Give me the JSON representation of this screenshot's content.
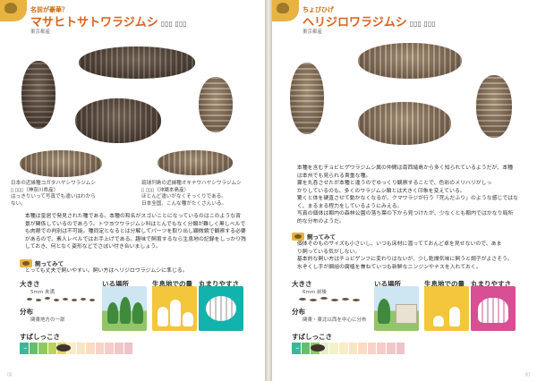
{
  "left": {
    "caption_label": "名前が豪華？",
    "title_jp": "マサヒトサトワラジムシ",
    "title_latin": "▯▯▯ ▯▯▯",
    "origin": "東京都産",
    "caption_a_line1": "日本の近縁種コガタハヤシワラジムシ",
    "caption_a_latin": "▯ ▯▯▯",
    "caption_a_place": "（神奈川県産）",
    "caption_a_line2": "はっきりいって写真でも違いはわから",
    "caption_a_line3": "ない。",
    "caption_b_line1": "琉球列島の近縁種オキナワハヤシワラジムシ",
    "caption_b_latin": "▯ ▯▯▯",
    "caption_b_place": "（沖縄本島産）",
    "caption_b_line2": "ほとんど違いがなくそっくりである。",
    "caption_b_line3": "日本全国、こんな種がたくさんいる。",
    "body_line1": "本種は皇居で発見された種である。本種の和名がスゴいことになっているのはこのような背",
    "body_line2": "景が関係しているのであろう。トウヨウワラジムシ科はとんでもなく分類が難しく黒しべルで",
    "body_line3": "も肉眼での判別は不可能。種同定となるとは分解してパーツを取り出し顕微鏡で観察する必要",
    "body_line4": "があるので、素人レベルではお手上げである。趣味で飼育するなら生息地の記録をしっかり残",
    "body_line5": "しておき、何となく姿形などでさぼい付き合いましょう。",
    "keep_heading": "飼ってみて",
    "keep_text": "とっても丈夫で飼いやすい。飼い方はヘリジロワラジムシに準じる。",
    "size_label": "大きさ",
    "size_value": "5mm 未満",
    "distribution_label": "分布",
    "distribution_value": "関東地方の一部",
    "habitat_label": "いる場所",
    "amount_label": "生息地での量",
    "round_label": "丸まりやすさ",
    "speed_label": "すばしっこさ",
    "speed_min": "−",
    "speed_max": "+",
    "page_number": "▯▯"
  },
  "right": {
    "caption_label": "ちょびひげ",
    "title_jp": "ヘリジロワラジムシ",
    "title_latin": "▯▯▯ ▯▯▯",
    "origin": "東京都産",
    "body_line1": "本種を含むチョビヒゲワラジムシ属の仲間は南西諸島から多く知られているようだが、本種",
    "body_line2": "は本州でも見られる貴重な種。",
    "body_line3": "翼を丸呑させたが本種と違うのでゆっくり観察することで、色彩のメリハリがしっ",
    "body_line4": "かりしているのも、多くのワラジムシ類とは大きく印象を変えている。",
    "body_line5": "驚くと体を硬直させて動かなくなるが、クマワラジが行う「死んだふり」のような感じではな",
    "body_line6": "く、まるまる程力をしているようにみえる。",
    "body_line7": "写真の個体は都内の森林公園の落ち葉の下から見つけたが、少なくとも都内ではかなり局所",
    "body_line8": "的な分布のようだ。",
    "keep_heading": "飼ってみて",
    "keep_line1": "個体そのものサイズも小さいし、いつも床材に潜ってておんど卓を見せないので、あま",
    "keep_line2": "り飼っている気がしない。",
    "keep_line3": "基本的な飼い方はチョビゲンフに変わりはないが、少し乾燥気味に飼うと調子がよさそう。",
    "keep_line4": "水ぞくし手が網組の腐植を兼ねていつも新鮮なニンジンやナスを入れておく。",
    "size_label": "大きさ",
    "size_value": "6mm 前後",
    "distribution_label": "分布",
    "distribution_value": "関東・東北以西を中心に分布",
    "habitat_label": "いる場所",
    "amount_label": "生息地での量",
    "round_label": "丸まりやすさ",
    "speed_label": "すばしっこさ",
    "speed_min": "−",
    "speed_max": "+",
    "page_number": "▯▯"
  },
  "colors": {
    "accent_orange": "#d9611c",
    "tab_yellow": "#e8b341",
    "amount_yellow": "#f3c63b",
    "round_teal": "#12b3ad",
    "round_pink": "#d84f93",
    "speed_scale": [
      "#3fb59a",
      "#63c06a",
      "#8fcb5a",
      "#b9d65a",
      "#e2d85c",
      "#f2c857",
      "#f0b25a",
      "#ec9a5c",
      "#e8845f",
      "#e36f62",
      "#d95f66",
      "#cf5268"
    ]
  },
  "ratings": {
    "left_speed_level": 0.35,
    "right_speed_level": 0.2,
    "left_round_level": "high",
    "right_round_level": "medium"
  }
}
